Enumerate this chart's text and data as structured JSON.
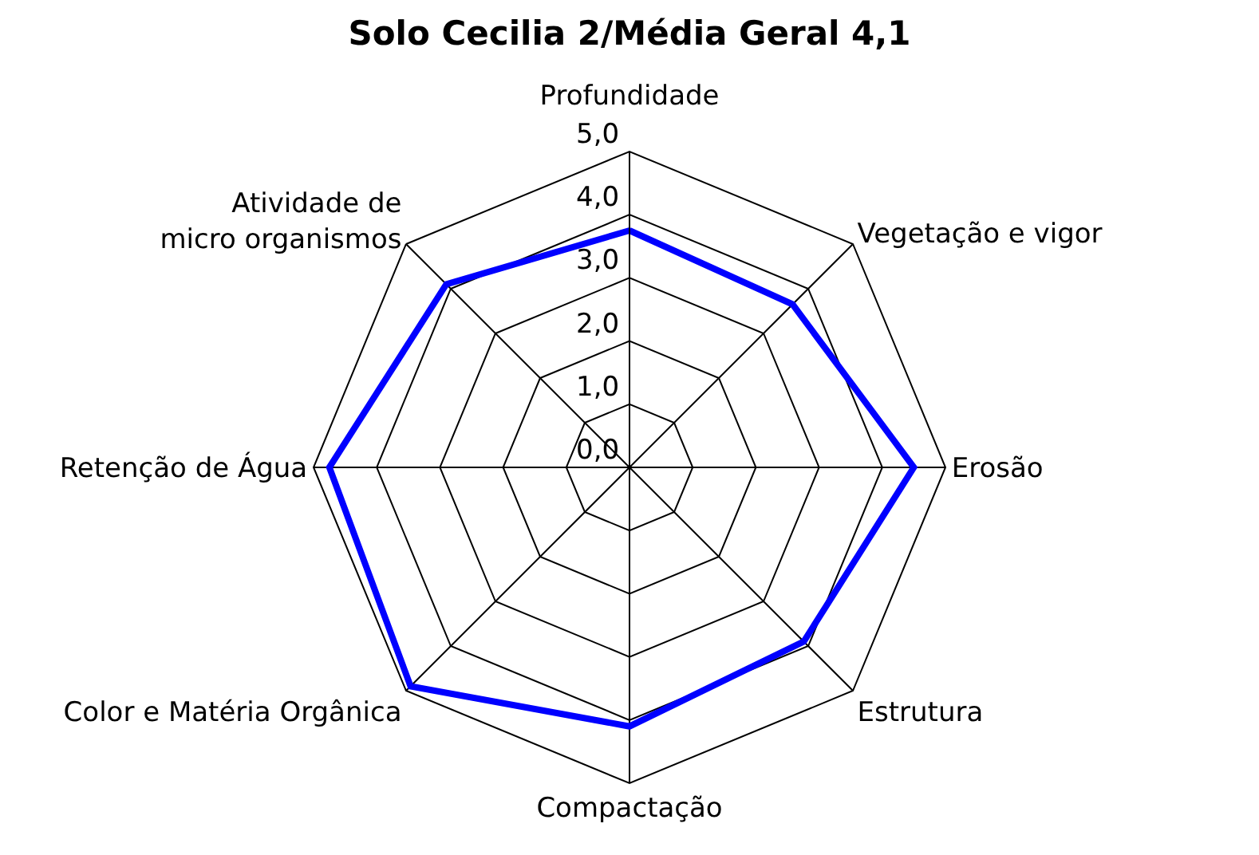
{
  "chart_data": {
    "type": "radar",
    "title": "Solo Cecilia 2/Média Geral 4,1",
    "categories": [
      "Profundidade",
      "Vegetação e vigor",
      "Erosão",
      "Estrutura",
      "Compactação",
      "Color e Matéria Orgânica",
      "Retenção de Água",
      "Atividade de micro organismos"
    ],
    "series": [
      {
        "color": "#0000ff",
        "values": [
          3.75,
          3.65,
          4.5,
          3.9,
          4.1,
          4.9,
          4.75,
          4.1
        ]
      }
    ],
    "ylim": [
      0,
      5
    ],
    "yticks": [
      {
        "value": 0,
        "label": "0,0"
      },
      {
        "value": 1,
        "label": "1,0"
      },
      {
        "value": 2,
        "label": "2,0"
      },
      {
        "value": 3,
        "label": "3,0"
      },
      {
        "value": 4,
        "label": "4,0"
      },
      {
        "value": 5,
        "label": "5,0"
      }
    ],
    "grid": true,
    "marker": "none",
    "line_style": "solid"
  }
}
